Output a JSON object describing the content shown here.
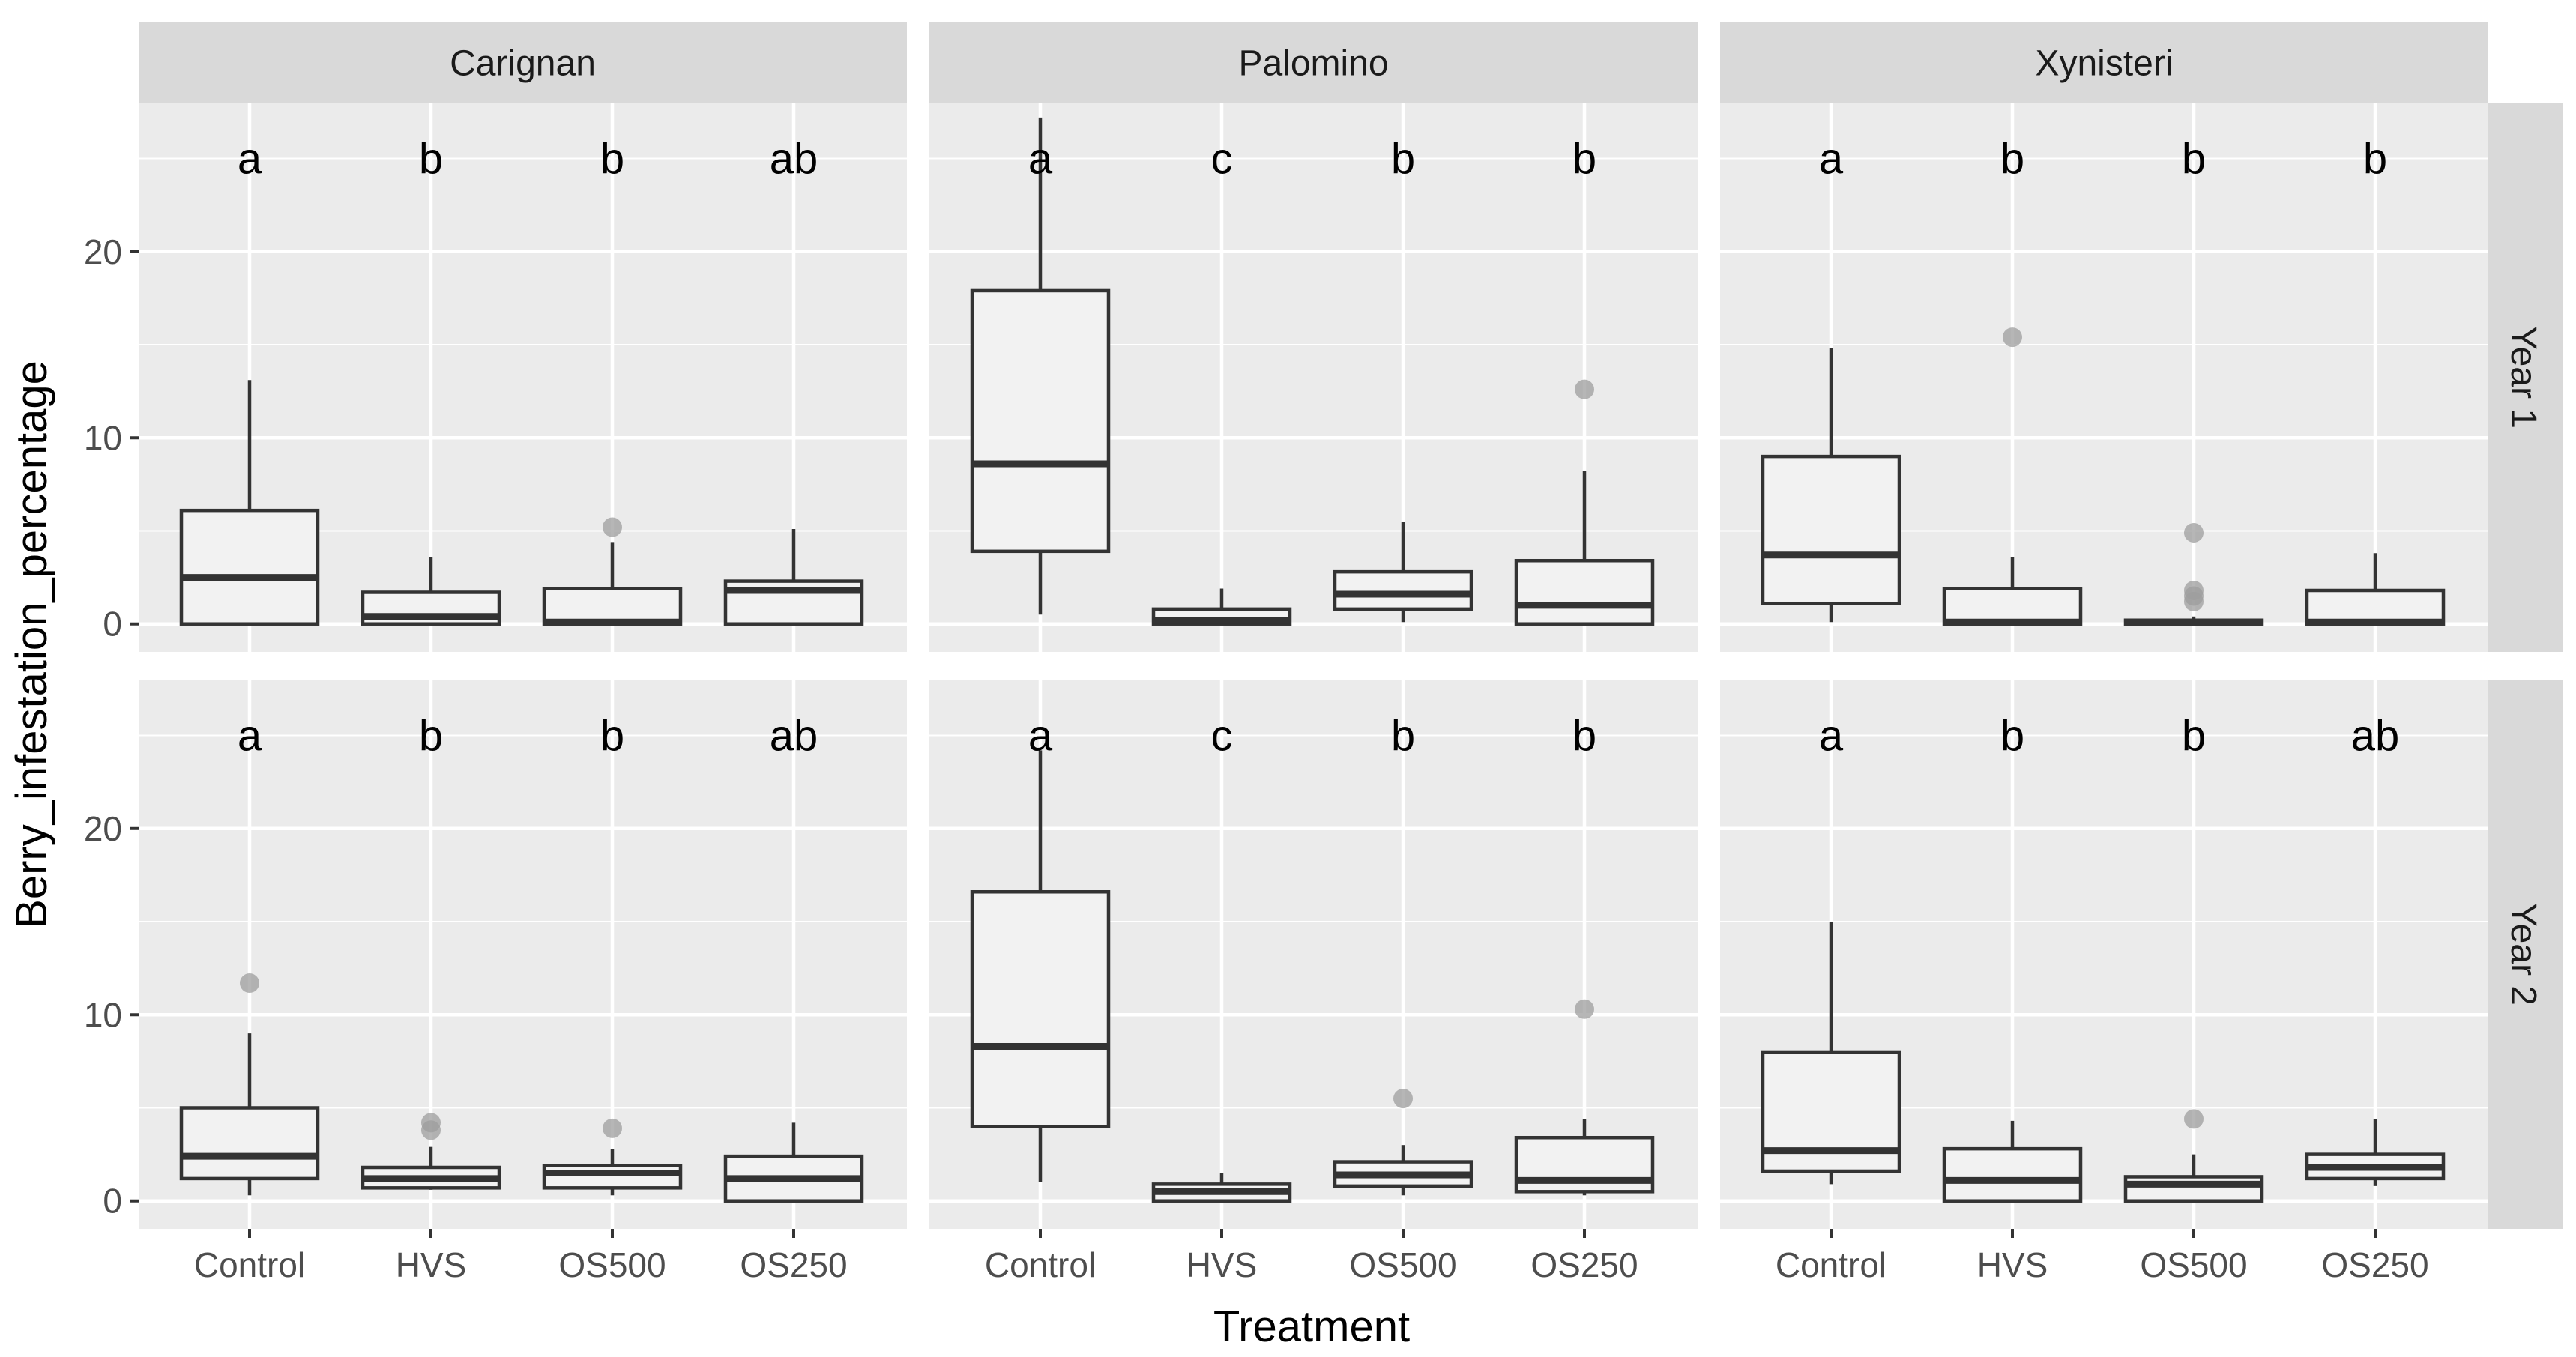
{
  "chart_data": {
    "type": "boxplot",
    "facet_type": "grid",
    "xlabel": "Treatment",
    "ylabel": "Berry_infestation_percentage",
    "ylim": [
      -1.5,
      28
    ],
    "yticks": [
      0,
      10,
      20
    ],
    "categories": [
      "Control",
      "HVS",
      "OS500",
      "OS250"
    ],
    "columns": [
      "Carignan",
      "Palomino",
      "Xynisteri"
    ],
    "rows": [
      "Year 1",
      "Year 2"
    ],
    "letter_y": 25,
    "colors": {
      "panel_bg": "#ebebeb",
      "grid": "#ffffff",
      "strip_bg": "#d9d9d9",
      "box_fill": "#f2f2f2",
      "box_line": "#333333",
      "outlier": "#9e9e9e",
      "tick": "#333333"
    },
    "panels": [
      {
        "column": "Carignan",
        "row": "Year 1",
        "boxes": [
          {
            "category": "Control",
            "min": 0,
            "q1": 0,
            "median": 2.5,
            "q3": 6.1,
            "max": 13.1,
            "outliers": [],
            "letter": "a"
          },
          {
            "category": "HVS",
            "min": 0,
            "q1": 0,
            "median": 0.4,
            "q3": 1.7,
            "max": 3.6,
            "outliers": [],
            "letter": "b"
          },
          {
            "category": "OS500",
            "min": 0,
            "q1": 0,
            "median": 0.1,
            "q3": 1.9,
            "max": 4.4,
            "outliers": [
              5.2
            ],
            "letter": "b"
          },
          {
            "category": "OS250",
            "min": 0,
            "q1": 0,
            "median": 1.8,
            "q3": 2.3,
            "max": 5.1,
            "outliers": [],
            "letter": "ab"
          }
        ]
      },
      {
        "column": "Palomino",
        "row": "Year 1",
        "boxes": [
          {
            "category": "Control",
            "min": 0.5,
            "q1": 3.9,
            "median": 8.6,
            "q3": 17.9,
            "max": 27.2,
            "outliers": [],
            "letter": "a"
          },
          {
            "category": "HVS",
            "min": 0,
            "q1": 0,
            "median": 0.2,
            "q3": 0.8,
            "max": 1.9,
            "outliers": [],
            "letter": "c"
          },
          {
            "category": "OS500",
            "min": 0.1,
            "q1": 0.8,
            "median": 1.6,
            "q3": 2.8,
            "max": 5.5,
            "outliers": [],
            "letter": "b"
          },
          {
            "category": "OS250",
            "min": 0,
            "q1": 0,
            "median": 1.0,
            "q3": 3.4,
            "max": 8.2,
            "outliers": [
              12.6
            ],
            "letter": "b"
          }
        ]
      },
      {
        "column": "Xynisteri",
        "row": "Year 1",
        "boxes": [
          {
            "category": "Control",
            "min": 0.1,
            "q1": 1.1,
            "median": 3.7,
            "q3": 9.0,
            "max": 14.8,
            "outliers": [],
            "letter": "a"
          },
          {
            "category": "HVS",
            "min": 0,
            "q1": 0,
            "median": 0.1,
            "q3": 1.9,
            "max": 3.6,
            "outliers": [
              15.4
            ],
            "letter": "b"
          },
          {
            "category": "OS500",
            "min": 0,
            "q1": 0,
            "median": 0.1,
            "q3": 0.2,
            "max": 0.4,
            "outliers": [
              4.9,
              1.8,
              1.5,
              1.2
            ],
            "letter": "b"
          },
          {
            "category": "OS250",
            "min": 0,
            "q1": 0,
            "median": 0.1,
            "q3": 1.8,
            "max": 3.8,
            "outliers": [],
            "letter": "b"
          }
        ]
      },
      {
        "column": "Carignan",
        "row": "Year 2",
        "boxes": [
          {
            "category": "Control",
            "min": 0.3,
            "q1": 1.2,
            "median": 2.4,
            "q3": 5.0,
            "max": 9.0,
            "outliers": [
              11.7
            ],
            "letter": "a"
          },
          {
            "category": "HVS",
            "min": 0.6,
            "q1": 0.7,
            "median": 1.2,
            "q3": 1.8,
            "max": 2.9,
            "outliers": [
              4.2,
              3.8
            ],
            "letter": "b"
          },
          {
            "category": "OS500",
            "min": 0.3,
            "q1": 0.7,
            "median": 1.5,
            "q3": 1.9,
            "max": 2.8,
            "outliers": [
              3.9
            ],
            "letter": "b"
          },
          {
            "category": "OS250",
            "min": 0,
            "q1": 0,
            "median": 1.2,
            "q3": 2.4,
            "max": 4.2,
            "outliers": [],
            "letter": "ab"
          }
        ]
      },
      {
        "column": "Palomino",
        "row": "Year 2",
        "boxes": [
          {
            "category": "Control",
            "min": 1.0,
            "q1": 4.0,
            "median": 8.3,
            "q3": 16.6,
            "max": 24.2,
            "outliers": [],
            "letter": "a"
          },
          {
            "category": "HVS",
            "min": 0,
            "q1": 0,
            "median": 0.5,
            "q3": 0.9,
            "max": 1.5,
            "outliers": [],
            "letter": "c"
          },
          {
            "category": "OS500",
            "min": 0.3,
            "q1": 0.8,
            "median": 1.4,
            "q3": 2.1,
            "max": 3.0,
            "outliers": [
              5.5
            ],
            "letter": "b"
          },
          {
            "category": "OS250",
            "min": 0.3,
            "q1": 0.5,
            "median": 1.1,
            "q3": 3.4,
            "max": 4.4,
            "outliers": [
              10.3
            ],
            "letter": "b"
          }
        ]
      },
      {
        "column": "Xynisteri",
        "row": "Year 2",
        "boxes": [
          {
            "category": "Control",
            "min": 0.9,
            "q1": 1.6,
            "median": 2.7,
            "q3": 8.0,
            "max": 15.0,
            "outliers": [],
            "letter": "a"
          },
          {
            "category": "HVS",
            "min": 0,
            "q1": 0,
            "median": 1.1,
            "q3": 2.8,
            "max": 4.3,
            "outliers": [],
            "letter": "b"
          },
          {
            "category": "OS500",
            "min": 0,
            "q1": 0,
            "median": 0.9,
            "q3": 1.3,
            "max": 2.5,
            "outliers": [
              4.4
            ],
            "letter": "b"
          },
          {
            "category": "OS250",
            "min": 0.8,
            "q1": 1.2,
            "median": 1.8,
            "q3": 2.5,
            "max": 4.4,
            "outliers": [],
            "letter": "ab"
          }
        ]
      }
    ]
  }
}
